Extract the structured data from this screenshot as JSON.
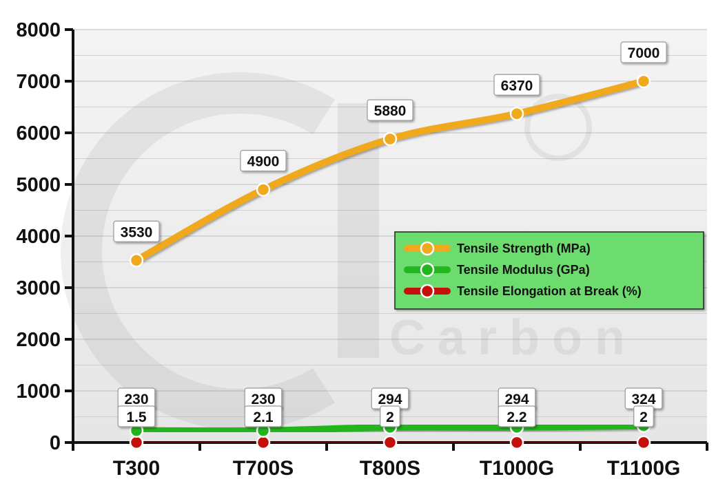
{
  "chart_data": {
    "type": "line",
    "categories": [
      "T300",
      "T700S",
      "T800S",
      "T1000G",
      "T1100G"
    ],
    "ylim": [
      0,
      8000
    ],
    "yticks": [
      0,
      1000,
      2000,
      3000,
      4000,
      5000,
      6000,
      7000,
      8000
    ],
    "grid": true,
    "legend_position": "right",
    "series": [
      {
        "name": "Tensile Strength (MPa)",
        "values": [
          3530,
          4900,
          5880,
          6370,
          7000
        ],
        "color": "#f0a81c",
        "labels": [
          "3530",
          "4900",
          "5880",
          "6370",
          "7000"
        ]
      },
      {
        "name": "Tensile Modulus (GPa)",
        "values": [
          230,
          230,
          294,
          294,
          324
        ],
        "color": "#22b51f",
        "labels": [
          "230",
          "230",
          "294",
          "294",
          "324"
        ]
      },
      {
        "name": "Tensile Elongation at Break (%)",
        "values": [
          1.5,
          2.1,
          2,
          2.2,
          2
        ],
        "color": "#c4100c",
        "labels": [
          "1.5",
          "2.1",
          "2",
          "2.2",
          "2"
        ]
      }
    ],
    "legend_bg": "#6ddc6e",
    "watermark_text": "Carbon"
  }
}
